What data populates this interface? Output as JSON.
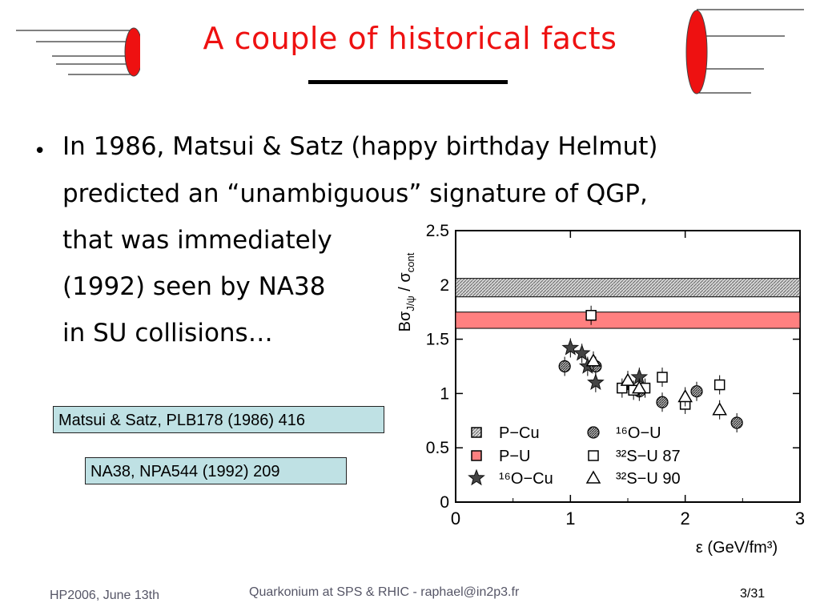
{
  "slide": {
    "title": "A couple of historical facts",
    "bullet": {
      "lines": [
        "In 1986, Matsui & Satz (happy birthday Helmut)",
        "predicted an “unambiguous” signature of QGP,",
        "that was immediately",
        "(1992) seen by NA38",
        "in SU collisions…"
      ]
    },
    "references": [
      "Matsui & Satz, PLB178 (1986) 416",
      "NA38, NPA544 (1992) 209"
    ],
    "footer": {
      "left": "HP2006, June 13th",
      "center": "Quarkonium at SPS & RHIC - raphael@in2p3.fr",
      "page": "3/31"
    },
    "colors": {
      "title": "#ee1111",
      "decor_ellipse": "#ee1111",
      "reference_box": "#bfe1e4"
    }
  },
  "chart_data": {
    "type": "scatter",
    "ylabel": "BσJ/ψ / σcont",
    "xlabel": "ε (GeV/fm³)",
    "xlim": [
      0,
      3
    ],
    "ylim": [
      0,
      2.5
    ],
    "x_ticks": [
      "0",
      "1",
      "2",
      "3"
    ],
    "y_ticks": [
      "0",
      "0.5",
      "1",
      "1.5",
      "2",
      "2.5"
    ],
    "bands": [
      {
        "name": "P−Cu",
        "y_low": 1.89,
        "y_high": 2.06,
        "style": "hatched-gray"
      },
      {
        "name": "P−U",
        "y_low": 1.6,
        "y_high": 1.75,
        "style": "pink"
      }
    ],
    "series": [
      {
        "name": "P−U",
        "marker": "square-open",
        "points": [
          [
            1.18,
            1.72
          ]
        ]
      },
      {
        "name": "¹⁶O−Cu",
        "marker": "star",
        "points": [
          [
            1.0,
            1.42
          ],
          [
            1.1,
            1.37
          ],
          [
            1.15,
            1.25
          ],
          [
            1.22,
            1.1
          ],
          [
            1.6,
            1.15
          ]
        ]
      },
      {
        "name": "¹⁶O−U",
        "marker": "circle-hatched",
        "points": [
          [
            0.95,
            1.25
          ],
          [
            1.22,
            1.25
          ],
          [
            1.6,
            1.02
          ],
          [
            1.8,
            0.92
          ],
          [
            2.1,
            1.02
          ],
          [
            2.45,
            0.73
          ]
        ]
      },
      {
        "name": "³²S−U 87",
        "marker": "square-open",
        "points": [
          [
            1.45,
            1.05
          ],
          [
            1.55,
            1.03
          ],
          [
            1.65,
            1.05
          ],
          [
            1.8,
            1.15
          ],
          [
            2.0,
            0.9
          ],
          [
            2.3,
            1.08
          ]
        ]
      },
      {
        "name": "³²S−U 90",
        "marker": "triangle-open",
        "points": [
          [
            1.2,
            1.3
          ],
          [
            1.5,
            1.12
          ],
          [
            1.6,
            1.05
          ],
          [
            2.0,
            0.97
          ],
          [
            2.3,
            0.85
          ]
        ]
      }
    ],
    "legend": {
      "placement": "bottom-left",
      "entries": [
        {
          "label": "P−Cu",
          "marker": "square-hatched"
        },
        {
          "label": "¹⁶O−U",
          "marker": "circle-hatched"
        },
        {
          "label": "P−U",
          "marker": "square-pink"
        },
        {
          "label": "³²S−U 87",
          "marker": "square-open"
        },
        {
          "label": "¹⁶O−Cu",
          "marker": "star"
        },
        {
          "label": "³²S−U 90",
          "marker": "triangle-open"
        }
      ]
    }
  }
}
